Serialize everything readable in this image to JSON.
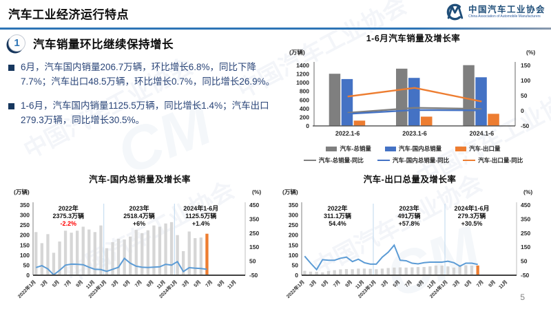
{
  "header": {
    "title": "汽车工业经济运行特点",
    "logo": {
      "org_cn": "中国汽车工业协会",
      "org_en": "China Association of Automobile Manufacturers",
      "mark": "CM"
    }
  },
  "section": {
    "number": "1",
    "heading": "汽车销量环比继续保持增长",
    "bullets": [
      "6月，汽车国内销量206.7万辆，环比增长6.8%，同比下降7.7%；汽车出口48.5万辆，环比增长0.7%，同比增长26.9%。",
      "1-6月，汽车国内销量1125.5万辆，同比增长1.4%；汽车出口279.3万辆，同比增长30.5%。"
    ]
  },
  "watermark": {
    "text": "中国汽车工业协会",
    "mark": "CM"
  },
  "page_number": "5",
  "colors": {
    "accent_blue": "#2E75B6",
    "text_navy": "#17375E",
    "bar_gray": "#7F7F7F",
    "bar_blue": "#4472C4",
    "bar_orange": "#ED7D31",
    "bar_light": "#D6D6D6",
    "line_blue": "#5B9BD5",
    "negative_red": "#FF0000"
  },
  "chart_data": [
    {
      "type": "bar",
      "title": "1-6月汽车销量及增长率",
      "left_axis": {
        "label": "(万辆)",
        "min": 0,
        "max": 1400,
        "step": 200
      },
      "right_axis": {
        "label": "(%)",
        "min": -50,
        "max": 150,
        "step": 50
      },
      "categories": [
        "2022.1-6",
        "2023.1-6",
        "2024.1-6"
      ],
      "legend_position": "bottom",
      "grid": false,
      "series": [
        {
          "name": "汽车-总销量",
          "kind": "bar",
          "axis": "left",
          "color": "#7F7F7F",
          "values": [
            1205.7,
            1323.9,
            1404.8
          ]
        },
        {
          "name": "汽车-国内总销量",
          "kind": "bar",
          "axis": "left",
          "color": "#4472C4",
          "values": [
            1083.9,
            1110.0,
            1125.5
          ]
        },
        {
          "name": "汽车-出口量",
          "kind": "bar",
          "axis": "left",
          "color": "#ED7D31",
          "values": [
            121.8,
            214.0,
            279.3
          ]
        },
        {
          "name": "汽车-总销量-同比",
          "kind": "line",
          "axis": "right",
          "color": "#7F7F7F",
          "values": [
            -6.6,
            9.8,
            6.1
          ]
        },
        {
          "name": "汽车-国内总销量-同比",
          "kind": "line",
          "axis": "right",
          "color": "#4472C4",
          "values": [
            -10.3,
            2.4,
            1.4
          ]
        },
        {
          "name": "汽车-出口量-同比",
          "kind": "line",
          "axis": "right",
          "color": "#ED7D31",
          "values": [
            47.1,
            75.7,
            30.5
          ]
        }
      ]
    },
    {
      "type": "bar",
      "title": "汽车-国内总销量及增长率",
      "left_axis": {
        "label": "(万辆)",
        "min": 0,
        "max": 350,
        "step": 50
      },
      "right_axis": {
        "label": "(%)",
        "min": -50,
        "max": 450,
        "step": 100
      },
      "slots": 36,
      "separator_slots": [
        12,
        24
      ],
      "bar_color": "#D6D6D6",
      "highlight_color": "#ED7D31",
      "line_color": "#5B9BD5",
      "x_labels": [
        "2022年1月",
        "3月",
        "5月",
        "7月",
        "9月",
        "11月",
        "2023年1月",
        "3月",
        "5月",
        "7月",
        "9月",
        "11月",
        "2024年1月",
        "3月",
        "5月",
        "7月",
        "9月",
        "11月"
      ],
      "bars": [
        215,
        160,
        205,
        112,
        168,
        222,
        212,
        222,
        242,
        228,
        215,
        248,
        135,
        165,
        182,
        178,
        193,
        226,
        210,
        224,
        248,
        242,
        258,
        265,
        200,
        120,
        218,
        185,
        188,
        207
      ],
      "line": [
        5,
        18,
        -5,
        -47,
        -15,
        22,
        29,
        28,
        25,
        7,
        -8,
        -10,
        -22,
        -8,
        7,
        70,
        36,
        14,
        7,
        5,
        8,
        10,
        28,
        22,
        47,
        -24,
        4,
        0,
        -2,
        -8
      ],
      "annotations": [
        {
          "label": "2022年",
          "volume": "2375.3万辆",
          "growth": "-2.2%",
          "growth_red": true,
          "slot": 6
        },
        {
          "label": "2023年",
          "volume": "2518.4万辆",
          "growth": "+6%",
          "slot": 18
        },
        {
          "label": "2024年1-6月",
          "volume": "1125.5万辆",
          "growth": "+1.4%",
          "slot": 28.5
        }
      ]
    },
    {
      "type": "bar",
      "title": "汽车-出口总量及增长率",
      "left_axis": {
        "label": "(万辆)",
        "min": 0,
        "max": 350,
        "step": 50
      },
      "right_axis": {
        "label": "(%)",
        "min": -50,
        "max": 450,
        "step": 100
      },
      "slots": 36,
      "separator_slots": [
        12,
        24
      ],
      "bar_color": "#D6D6D6",
      "highlight_color": "#ED7D31",
      "line_color": "#5B9BD5",
      "x_labels": [
        "2022年1月",
        "3月",
        "5月",
        "7月",
        "9月",
        "11月",
        "2023年1月",
        "3月",
        "5月",
        "7月",
        "9月",
        "11月",
        "2024年1月",
        "3月",
        "5月",
        "7月",
        "9月",
        "11月"
      ],
      "bars": [
        22,
        18,
        17,
        14,
        21,
        25,
        29,
        31,
        30,
        33,
        33,
        32,
        30,
        33,
        36,
        38,
        39,
        38,
        39,
        41,
        41,
        44,
        48,
        48,
        44,
        38,
        50,
        50,
        48,
        48.5
      ],
      "line": [
        86,
        36,
        -10,
        61,
        57,
        57,
        71,
        79,
        47,
        64,
        39,
        29,
        29,
        79,
        114,
        164,
        57,
        53,
        36,
        31,
        39,
        43,
        43,
        43,
        50,
        39,
        14,
        36,
        36,
        27
      ],
      "annotations": [
        {
          "label": "2022年",
          "volume": "311.1万辆",
          "growth": "54.4%",
          "slot": 6
        },
        {
          "label": "2023年",
          "volume": "491万辆",
          "growth": "+57.8%",
          "slot": 18
        },
        {
          "label": "2024年1-6月",
          "volume": "279.3万辆",
          "growth": "+30.5%",
          "slot": 28.5
        }
      ]
    }
  ]
}
